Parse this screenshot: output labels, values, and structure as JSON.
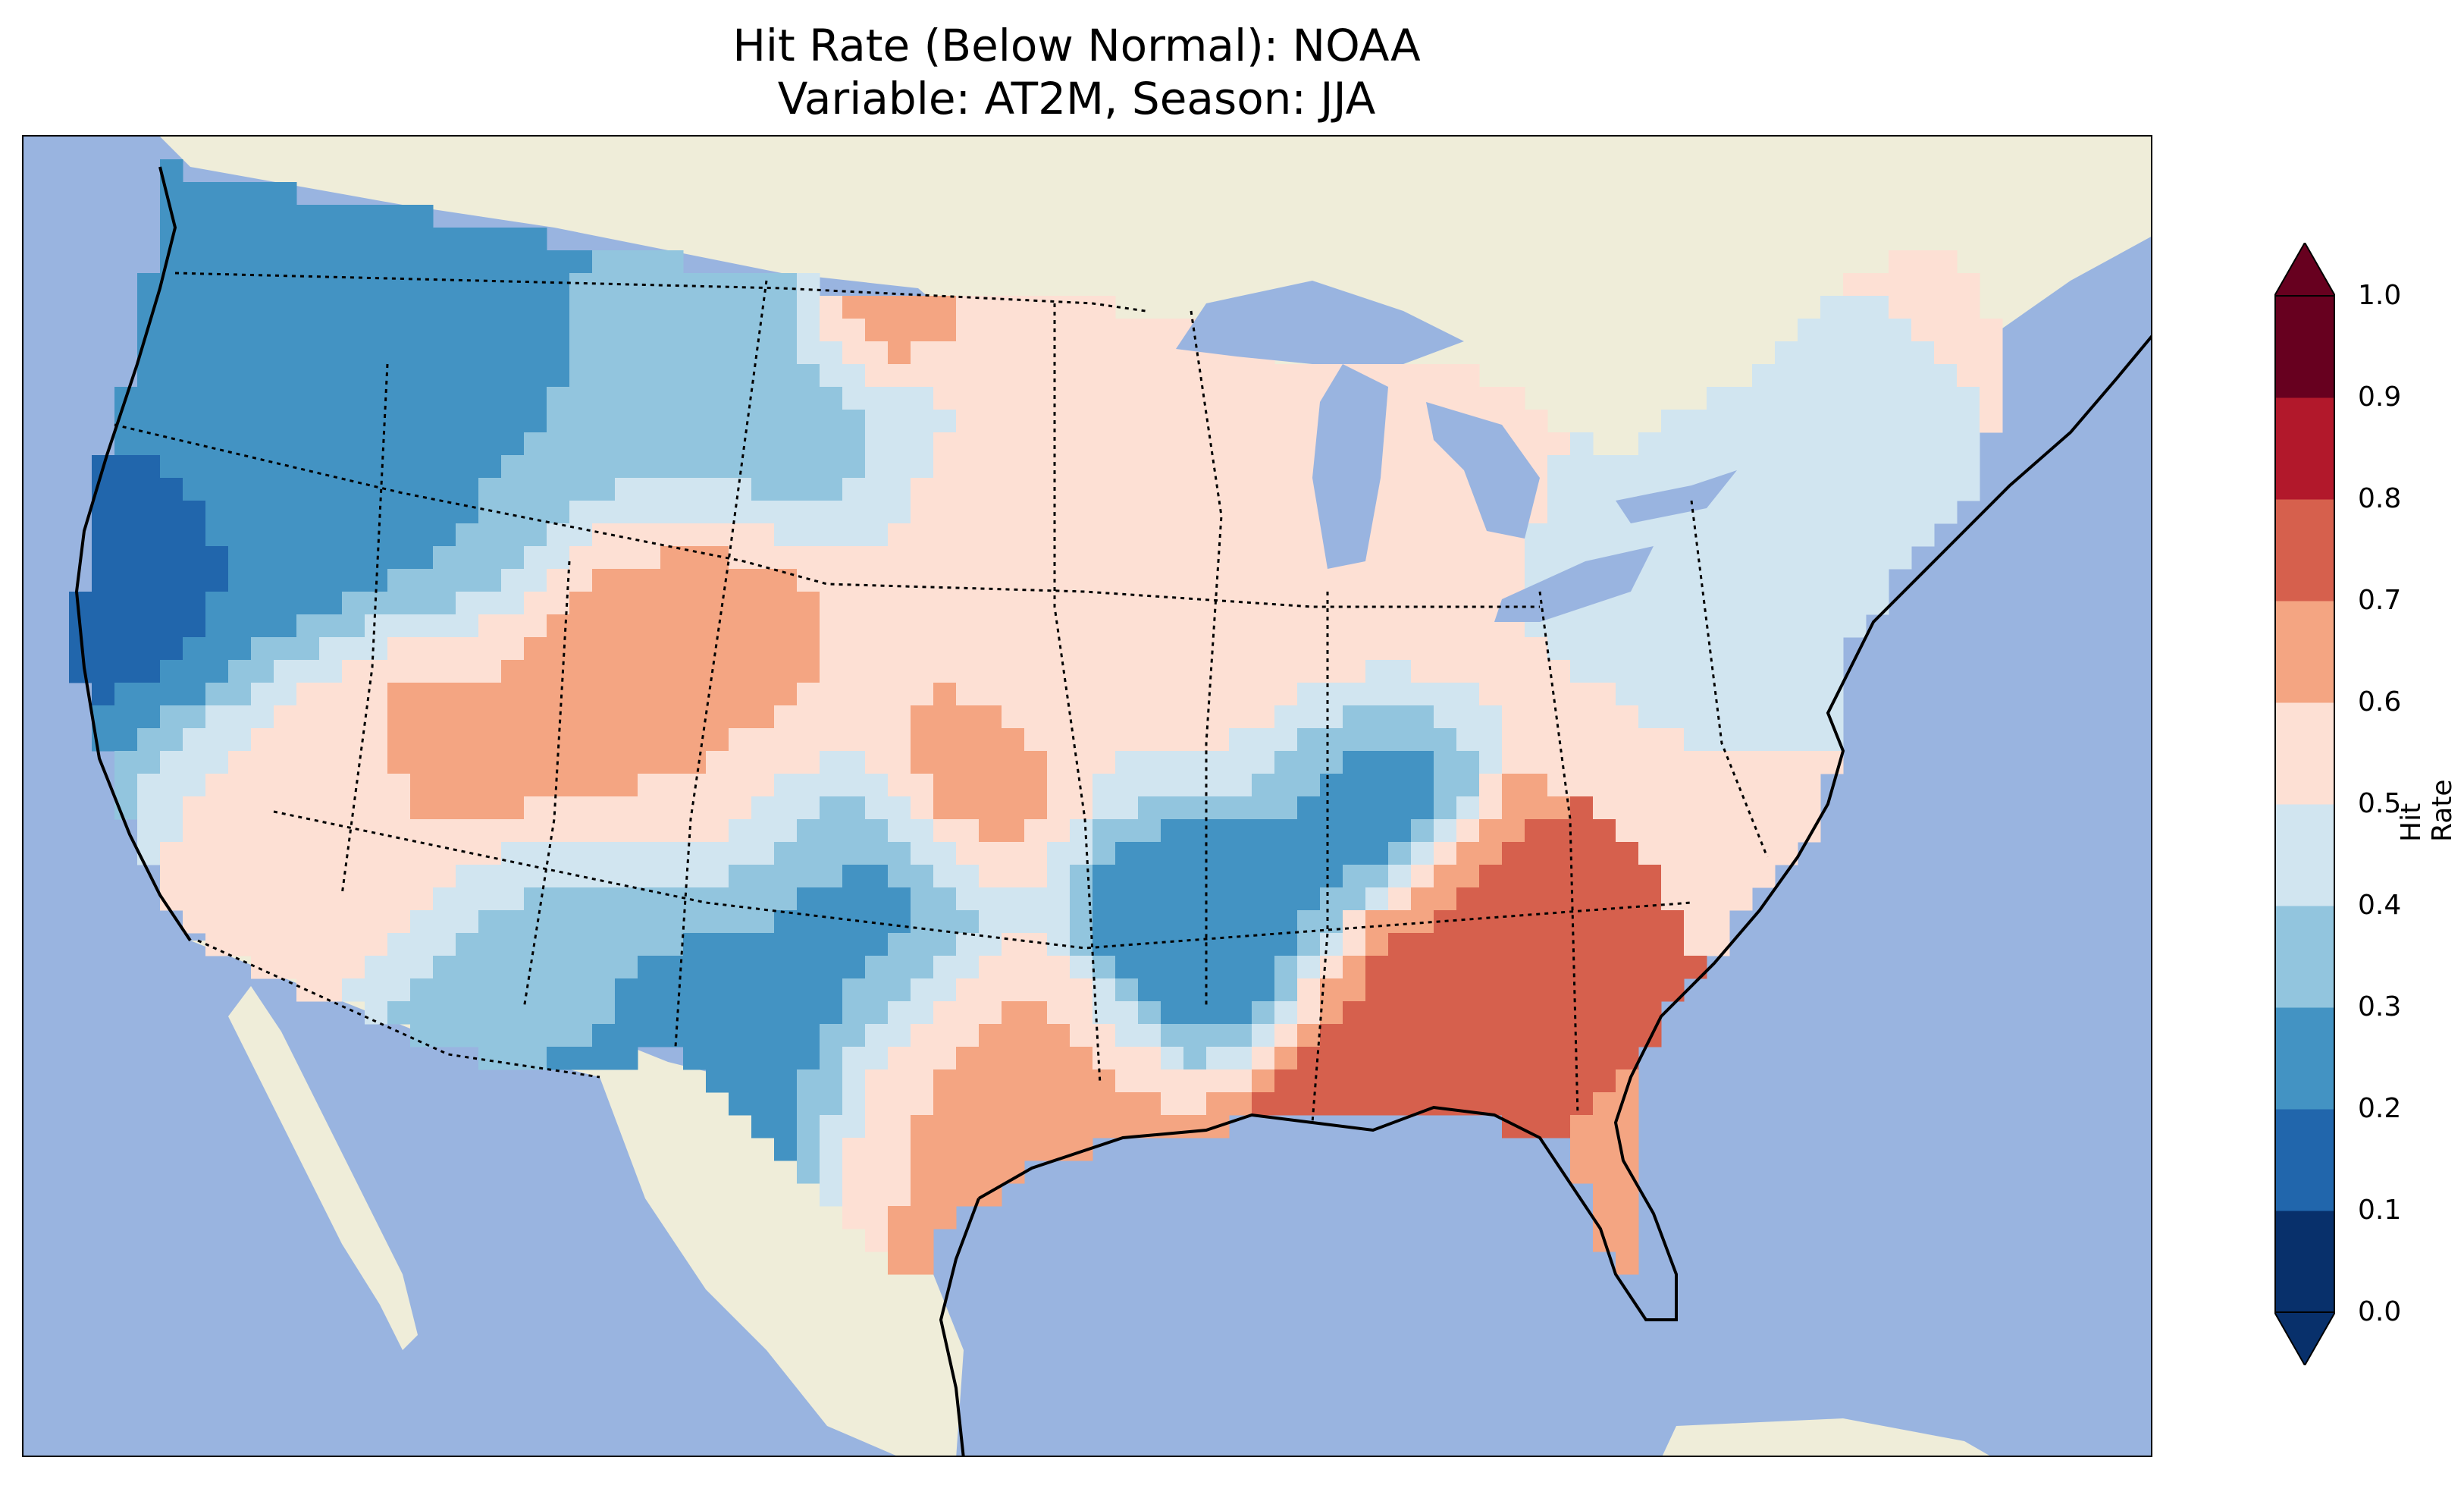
{
  "title": {
    "line1": "Hit Rate (Below Normal): NOAA",
    "line2": "Variable: AT2M, Season: JJA"
  },
  "colorbar": {
    "label": "Hit Rate",
    "ticks": [
      "0.0",
      "0.1",
      "0.2",
      "0.3",
      "0.4",
      "0.5",
      "0.6",
      "0.7",
      "0.8",
      "0.9",
      "1.0"
    ],
    "colors": [
      "#08306b",
      "#2166ac",
      "#4393c3",
      "#92c5de",
      "#d1e5f0",
      "#fde0d4",
      "#f4a582",
      "#d6604d",
      "#b2182b",
      "#67001f"
    ],
    "extend": "both"
  },
  "map_colors": {
    "ocean": "#99b4e0",
    "land": "#efedd9",
    "coast": "#000000",
    "border": "#000000"
  }
}
